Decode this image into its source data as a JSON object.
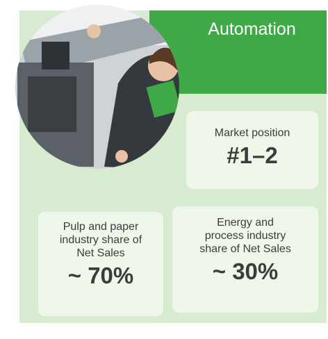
{
  "header": {
    "title": "Automation"
  },
  "cards": [
    {
      "label": "Market position",
      "value": "#1–2"
    },
    {
      "label": "Pulp and paper industry share of Net Sales",
      "value": "~ 70%"
    },
    {
      "label": "Energy and process industry share of Net Sales",
      "value": "~ 30%"
    }
  ]
}
